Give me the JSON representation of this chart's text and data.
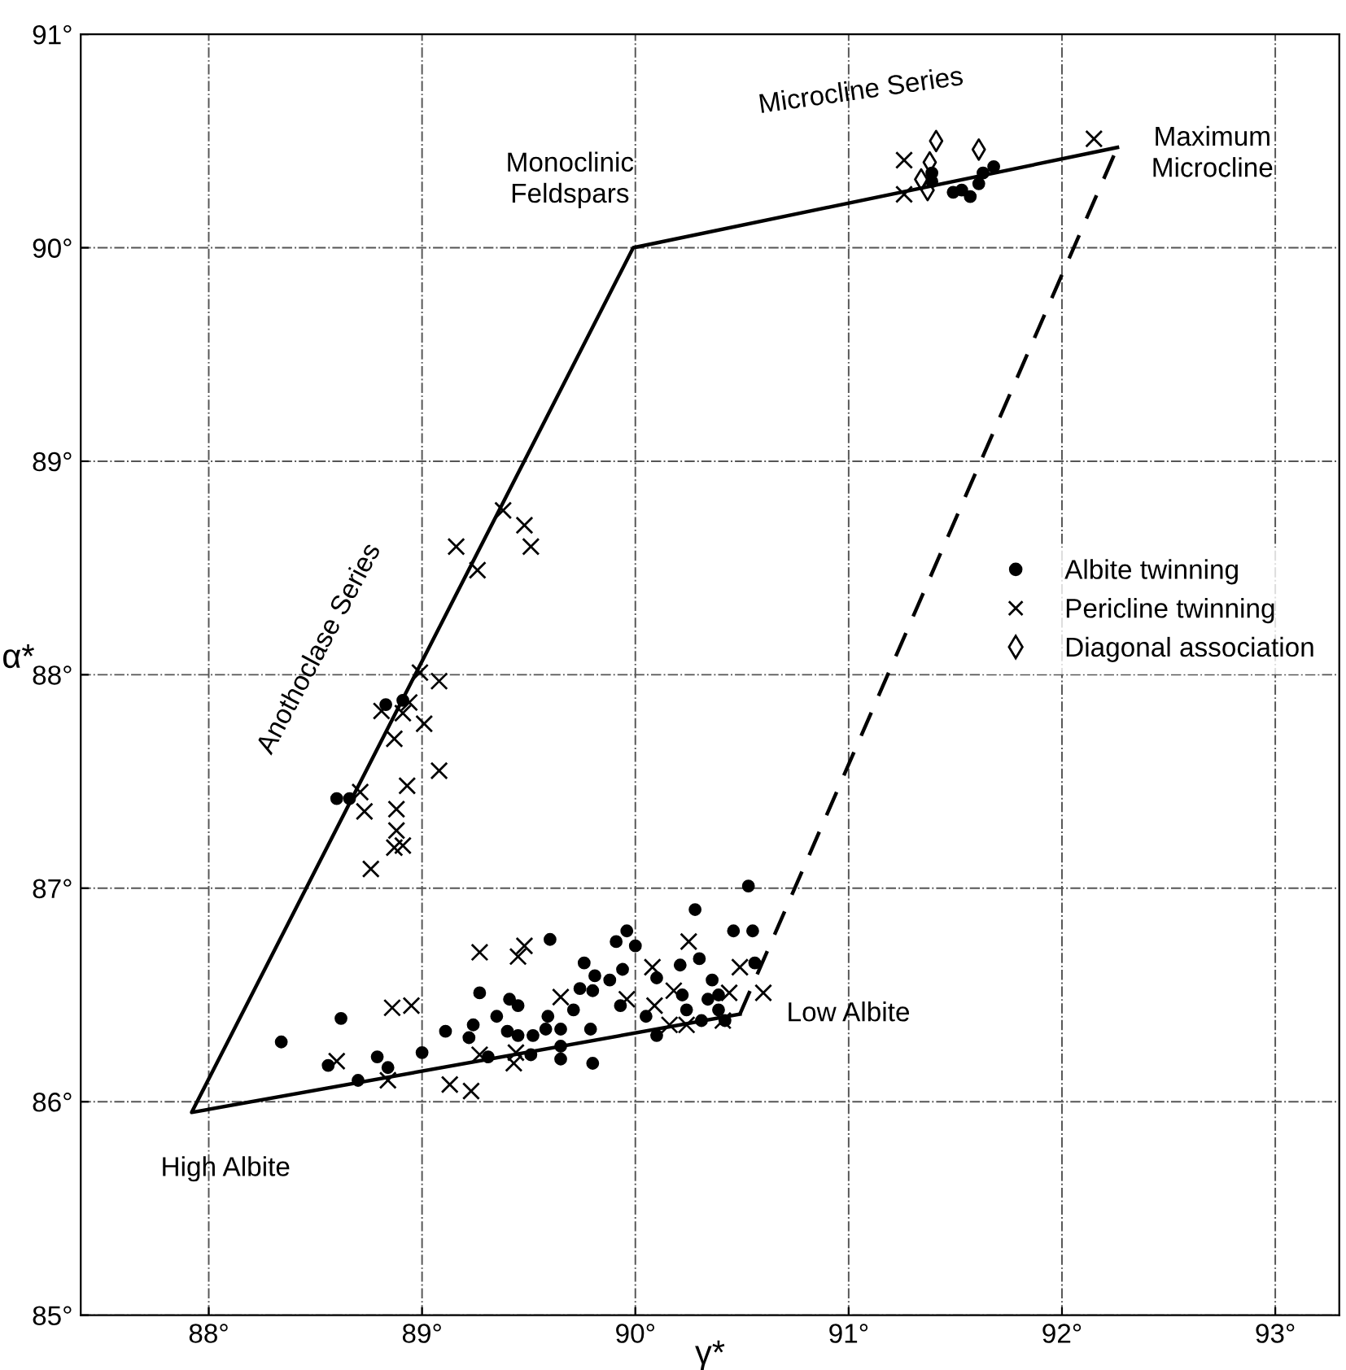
{
  "chart_data": {
    "type": "scatter",
    "xlabel": "γ*",
    "ylabel": "α*",
    "xlim": [
      87.4,
      93.3
    ],
    "ylim": [
      85,
      91
    ],
    "xticks": [
      {
        "value": 88,
        "label": "88°"
      },
      {
        "value": 89,
        "label": "89°"
      },
      {
        "value": 90,
        "label": "90°"
      },
      {
        "value": 91,
        "label": "91°"
      },
      {
        "value": 92,
        "label": "92°"
      },
      {
        "value": 93,
        "label": "93°"
      }
    ],
    "yticks": [
      {
        "value": 85,
        "label": "85°"
      },
      {
        "value": 86,
        "label": "86°"
      },
      {
        "value": 87,
        "label": "87°"
      },
      {
        "value": 88,
        "label": "88°"
      },
      {
        "value": 89,
        "label": "89°"
      },
      {
        "value": 90,
        "label": "90°"
      },
      {
        "value": 91,
        "label": "91°"
      }
    ],
    "grid": true,
    "legend": "right",
    "series": [
      {
        "type": "line",
        "color": "#000000",
        "line_style": "solid",
        "marker": "none",
        "x": [
          90.49,
          87.92,
          89.99,
          92.26
        ],
        "values": [
          86.41,
          85.95,
          90.0,
          90.47
        ]
      },
      {
        "type": "line",
        "color": "#000000",
        "line_style": "dashed",
        "marker": "none",
        "x": [
          90.49,
          92.26
        ],
        "values": [
          86.41,
          90.47
        ]
      },
      {
        "name": "Albite twinning",
        "type": "scatter",
        "color": "#000000",
        "marker": "circle",
        "x": [
          88.34,
          88.62,
          88.56,
          88.79,
          88.84,
          88.7,
          89.0,
          89.11,
          89.22,
          89.24,
          89.27,
          89.35,
          89.41,
          89.45,
          89.4,
          89.45,
          89.52,
          89.51,
          89.59,
          89.6,
          89.58,
          89.65,
          89.65,
          89.65,
          89.71,
          89.74,
          89.76,
          89.8,
          89.79,
          89.8,
          89.81,
          89.88,
          89.91,
          89.96,
          90.0,
          89.94,
          89.93,
          90.1,
          90.21,
          90.28,
          90.3,
          90.36,
          90.34,
          90.39,
          90.46,
          90.55,
          90.53,
          90.1,
          90.24,
          90.31,
          90.39,
          90.42,
          90.56,
          90.22,
          90.05,
          89.31,
          88.83,
          88.91,
          88.6,
          88.66,
          91.39,
          91.39,
          91.49,
          91.53,
          91.57,
          91.61,
          91.63,
          91.68
        ],
        "values": [
          86.28,
          86.39,
          86.17,
          86.21,
          86.16,
          86.1,
          86.23,
          86.33,
          86.3,
          86.36,
          86.51,
          86.4,
          86.48,
          86.45,
          86.33,
          86.31,
          86.31,
          86.22,
          86.4,
          86.76,
          86.34,
          86.34,
          86.26,
          86.2,
          86.43,
          86.53,
          86.65,
          86.52,
          86.34,
          86.18,
          86.59,
          86.57,
          86.75,
          86.8,
          86.73,
          86.62,
          86.45,
          86.58,
          86.64,
          86.9,
          86.67,
          86.57,
          86.48,
          86.5,
          86.8,
          86.8,
          87.01,
          86.31,
          86.43,
          86.38,
          86.43,
          86.38,
          86.65,
          86.5,
          86.4,
          86.21,
          87.86,
          87.88,
          87.42,
          87.42,
          90.35,
          90.31,
          90.26,
          90.27,
          90.24,
          90.3,
          90.35,
          90.38
        ]
      },
      {
        "name": "Pericline twinning",
        "type": "scatter",
        "color": "#000000",
        "marker": "cross",
        "x": [
          89.27,
          89.48,
          89.45,
          88.86,
          88.95,
          88.6,
          88.84,
          89.13,
          89.23,
          89.27,
          89.44,
          89.43,
          89.65,
          89.96,
          90.08,
          90.09,
          90.18,
          90.25,
          90.16,
          90.24,
          90.41,
          90.44,
          90.49,
          90.6,
          89.38,
          89.48,
          89.51,
          89.16,
          89.26,
          88.99,
          89.08,
          88.94,
          88.81,
          88.91,
          89.01,
          88.87,
          89.08,
          88.93,
          88.71,
          88.73,
          88.88,
          88.88,
          88.87,
          88.91,
          88.76,
          91.26,
          91.26,
          92.15
        ],
        "values": [
          86.7,
          86.73,
          86.68,
          86.44,
          86.45,
          86.19,
          86.1,
          86.08,
          86.05,
          86.22,
          86.23,
          86.18,
          86.49,
          86.48,
          86.63,
          86.45,
          86.52,
          86.75,
          86.36,
          86.36,
          86.38,
          86.51,
          86.63,
          86.51,
          88.77,
          88.7,
          88.6,
          88.6,
          88.49,
          88.01,
          87.97,
          87.87,
          87.83,
          87.82,
          87.77,
          87.7,
          87.55,
          87.48,
          87.45,
          87.36,
          87.37,
          87.27,
          87.19,
          87.2,
          87.09,
          90.41,
          90.25,
          90.51
        ]
      },
      {
        "name": "Diagonal association",
        "type": "scatter",
        "color": "#000000",
        "marker": "diamond",
        "x": [
          91.41,
          91.38,
          91.34,
          91.37,
          91.61
        ],
        "values": [
          90.5,
          90.4,
          90.32,
          90.27,
          90.46
        ]
      }
    ],
    "annotations": [
      {
        "text": "Monoclinic\nFeldspars",
        "x": 89.99,
        "y": 90.0
      },
      "Microcline Series",
      {
        "text": "Maximum\nMicrocline",
        "x": 92.26,
        "y": 90.47
      },
      "Anothoclase Series",
      {
        "text": "High Albite",
        "x": 87.92,
        "y": 85.95
      },
      {
        "text": "Low Albite",
        "x": 90.49,
        "y": 86.41
      }
    ]
  }
}
